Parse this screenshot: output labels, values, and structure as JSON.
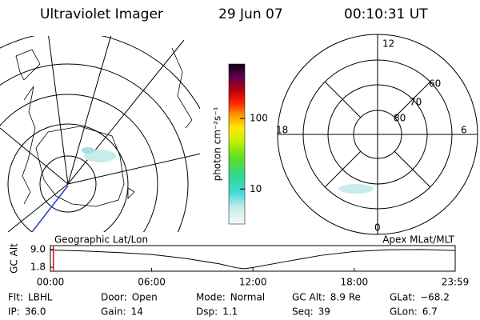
{
  "header": {
    "title": "Ultraviolet Imager",
    "date": "29 Jun 07",
    "time": "00:10:31 UT"
  },
  "colorbar": {
    "label": "photon cm⁻²s⁻¹",
    "scale": "log",
    "ylim": [
      3.2,
      590
    ],
    "ticks": [
      10,
      100
    ]
  },
  "left_panel": {
    "label": "Geographic Lat/Lon"
  },
  "right_panel": {
    "label": "Apex MLat/MLT",
    "mlt_labels": [
      "12",
      "18",
      "6",
      "0"
    ],
    "mlat_labels": [
      "60",
      "70",
      "80"
    ]
  },
  "chart_data": {
    "type": "line",
    "ylabel": "GC Alt",
    "x": [
      0,
      2,
      4,
      6,
      8,
      10,
      11,
      11.5,
      12,
      14,
      16,
      18,
      20,
      22,
      23,
      23.98
    ],
    "series": [
      {
        "name": "GC Alt",
        "color": "#000000",
        "values": [
          8.8,
          8.4,
          7.8,
          7.0,
          5.4,
          3.2,
          1.6,
          1.2,
          1.7,
          4.2,
          6.6,
          8.2,
          8.9,
          9.0,
          8.8,
          8.6
        ]
      }
    ],
    "current_time": 0.175,
    "marker_color": "#ff0000",
    "xlim": [
      0,
      23.98
    ],
    "xticks": [
      {
        "value": 0,
        "label": "00:00"
      },
      {
        "value": 6,
        "label": "06:00"
      },
      {
        "value": 12,
        "label": "12:00"
      },
      {
        "value": 18,
        "label": "18:00"
      },
      {
        "value": 23.98,
        "label": "23:59"
      }
    ],
    "ylim": [
      0.2,
      10.6
    ],
    "yticks": [
      1.8,
      {
        "value": 9,
        "label": "9.0"
      }
    ]
  },
  "footer": {
    "fields": [
      {
        "label": "Flt:",
        "value": "LBHL"
      },
      {
        "label": "Door:",
        "value": "Open"
      },
      {
        "label": "Mode:",
        "value": "Normal"
      },
      {
        "label": "GC Alt:",
        "value": "8.9 Re"
      },
      {
        "label": "GLat:",
        "value": "−68.2"
      },
      {
        "label": "IP:",
        "value": "36.0"
      },
      {
        "label": "Gain:",
        "value": "14"
      },
      {
        "label": "Dsp:",
        "value": "1.1"
      },
      {
        "label": "Seq:",
        "value": "39"
      },
      {
        "label": "GLon:",
        "value": "6.7"
      }
    ]
  }
}
